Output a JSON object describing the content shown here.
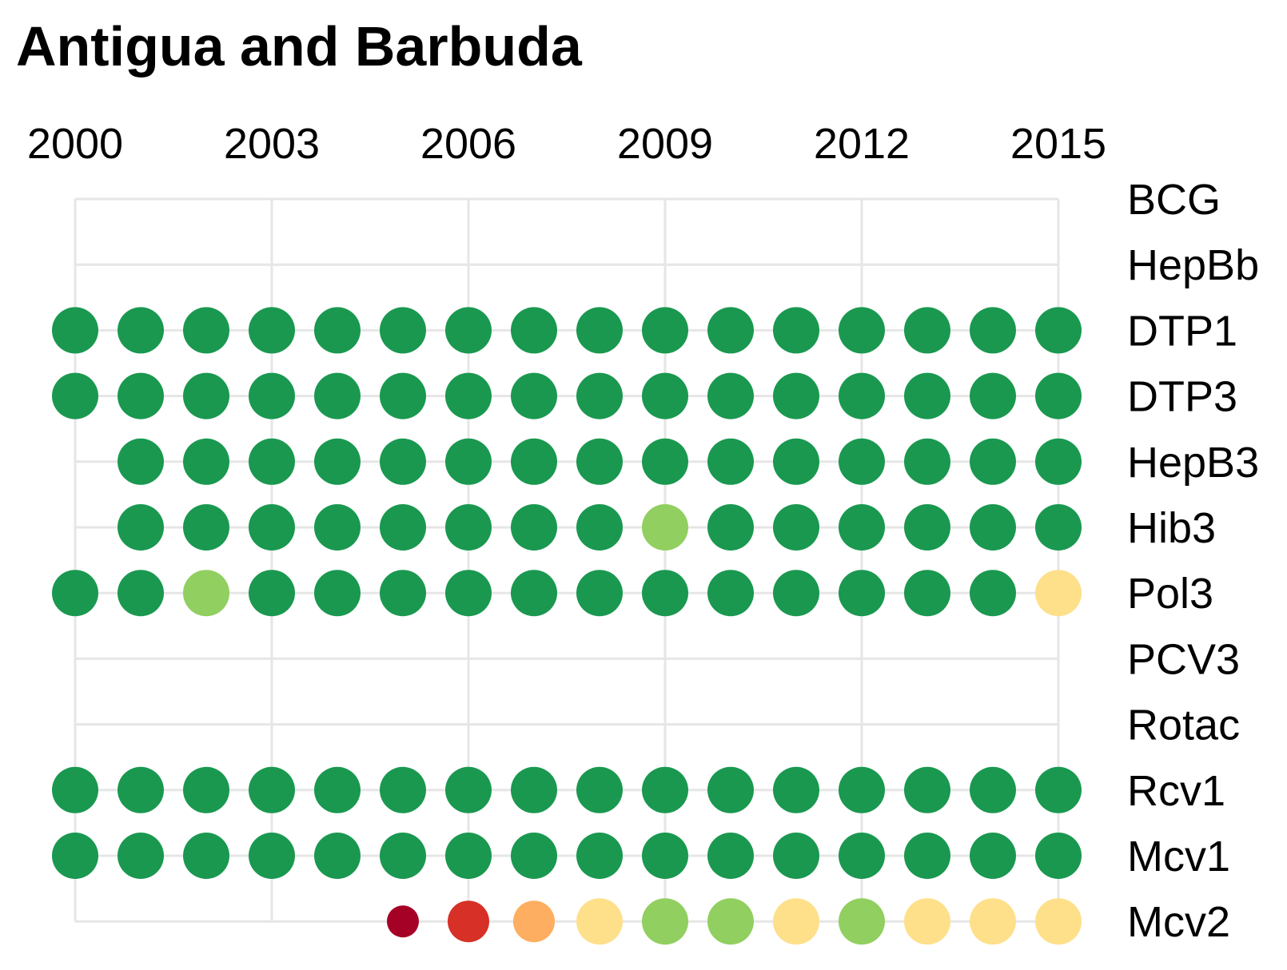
{
  "chart_data": {
    "type": "scatter",
    "title": "Antigua and Barbuda",
    "x_ticks": [
      "2000",
      "2003",
      "2006",
      "2009",
      "2012",
      "2015"
    ],
    "years": [
      2000,
      2001,
      2002,
      2003,
      2004,
      2005,
      2006,
      2007,
      2008,
      2009,
      2010,
      2011,
      2012,
      2013,
      2014,
      2015
    ],
    "xlim": [
      2000,
      2015
    ],
    "colors": {
      "dark_green": "#1a9850",
      "light_green": "#91cf60",
      "pale_yellow": "#fee08b",
      "orange": "#fdae61",
      "red": "#d73027",
      "dark_red": "#a50026"
    },
    "series": [
      {
        "name": "BCG",
        "points": []
      },
      {
        "name": "HepBb",
        "points": []
      },
      {
        "name": "DTP1",
        "points": [
          {
            "year": 2000,
            "level": "dark_green"
          },
          {
            "year": 2001,
            "level": "dark_green"
          },
          {
            "year": 2002,
            "level": "dark_green"
          },
          {
            "year": 2003,
            "level": "dark_green"
          },
          {
            "year": 2004,
            "level": "dark_green"
          },
          {
            "year": 2005,
            "level": "dark_green"
          },
          {
            "year": 2006,
            "level": "dark_green"
          },
          {
            "year": 2007,
            "level": "dark_green"
          },
          {
            "year": 2008,
            "level": "dark_green"
          },
          {
            "year": 2009,
            "level": "dark_green"
          },
          {
            "year": 2010,
            "level": "dark_green"
          },
          {
            "year": 2011,
            "level": "dark_green"
          },
          {
            "year": 2012,
            "level": "dark_green"
          },
          {
            "year": 2013,
            "level": "dark_green"
          },
          {
            "year": 2014,
            "level": "dark_green"
          },
          {
            "year": 2015,
            "level": "dark_green"
          }
        ]
      },
      {
        "name": "DTP3",
        "points": [
          {
            "year": 2000,
            "level": "dark_green"
          },
          {
            "year": 2001,
            "level": "dark_green"
          },
          {
            "year": 2002,
            "level": "dark_green"
          },
          {
            "year": 2003,
            "level": "dark_green"
          },
          {
            "year": 2004,
            "level": "dark_green"
          },
          {
            "year": 2005,
            "level": "dark_green"
          },
          {
            "year": 2006,
            "level": "dark_green"
          },
          {
            "year": 2007,
            "level": "dark_green"
          },
          {
            "year": 2008,
            "level": "dark_green"
          },
          {
            "year": 2009,
            "level": "dark_green"
          },
          {
            "year": 2010,
            "level": "dark_green"
          },
          {
            "year": 2011,
            "level": "dark_green"
          },
          {
            "year": 2012,
            "level": "dark_green"
          },
          {
            "year": 2013,
            "level": "dark_green"
          },
          {
            "year": 2014,
            "level": "dark_green"
          },
          {
            "year": 2015,
            "level": "dark_green"
          }
        ]
      },
      {
        "name": "HepB3",
        "points": [
          {
            "year": 2001,
            "level": "dark_green"
          },
          {
            "year": 2002,
            "level": "dark_green"
          },
          {
            "year": 2003,
            "level": "dark_green"
          },
          {
            "year": 2004,
            "level": "dark_green"
          },
          {
            "year": 2005,
            "level": "dark_green"
          },
          {
            "year": 2006,
            "level": "dark_green"
          },
          {
            "year": 2007,
            "level": "dark_green"
          },
          {
            "year": 2008,
            "level": "dark_green"
          },
          {
            "year": 2009,
            "level": "dark_green"
          },
          {
            "year": 2010,
            "level": "dark_green"
          },
          {
            "year": 2011,
            "level": "dark_green"
          },
          {
            "year": 2012,
            "level": "dark_green"
          },
          {
            "year": 2013,
            "level": "dark_green"
          },
          {
            "year": 2014,
            "level": "dark_green"
          },
          {
            "year": 2015,
            "level": "dark_green"
          }
        ]
      },
      {
        "name": "Hib3",
        "points": [
          {
            "year": 2001,
            "level": "dark_green"
          },
          {
            "year": 2002,
            "level": "dark_green"
          },
          {
            "year": 2003,
            "level": "dark_green"
          },
          {
            "year": 2004,
            "level": "dark_green"
          },
          {
            "year": 2005,
            "level": "dark_green"
          },
          {
            "year": 2006,
            "level": "dark_green"
          },
          {
            "year": 2007,
            "level": "dark_green"
          },
          {
            "year": 2008,
            "level": "dark_green"
          },
          {
            "year": 2009,
            "level": "light_green"
          },
          {
            "year": 2010,
            "level": "dark_green"
          },
          {
            "year": 2011,
            "level": "dark_green"
          },
          {
            "year": 2012,
            "level": "dark_green"
          },
          {
            "year": 2013,
            "level": "dark_green"
          },
          {
            "year": 2014,
            "level": "dark_green"
          },
          {
            "year": 2015,
            "level": "dark_green"
          }
        ]
      },
      {
        "name": "Pol3",
        "points": [
          {
            "year": 2000,
            "level": "dark_green"
          },
          {
            "year": 2001,
            "level": "dark_green"
          },
          {
            "year": 2002,
            "level": "light_green"
          },
          {
            "year": 2003,
            "level": "dark_green"
          },
          {
            "year": 2004,
            "level": "dark_green"
          },
          {
            "year": 2005,
            "level": "dark_green"
          },
          {
            "year": 2006,
            "level": "dark_green"
          },
          {
            "year": 2007,
            "level": "dark_green"
          },
          {
            "year": 2008,
            "level": "dark_green"
          },
          {
            "year": 2009,
            "level": "dark_green"
          },
          {
            "year": 2010,
            "level": "dark_green"
          },
          {
            "year": 2011,
            "level": "dark_green"
          },
          {
            "year": 2012,
            "level": "dark_green"
          },
          {
            "year": 2013,
            "level": "dark_green"
          },
          {
            "year": 2014,
            "level": "dark_green"
          },
          {
            "year": 2015,
            "level": "pale_yellow"
          }
        ]
      },
      {
        "name": "PCV3",
        "points": []
      },
      {
        "name": "Rotac",
        "points": []
      },
      {
        "name": "Rcv1",
        "points": [
          {
            "year": 2000,
            "level": "dark_green"
          },
          {
            "year": 2001,
            "level": "dark_green"
          },
          {
            "year": 2002,
            "level": "dark_green"
          },
          {
            "year": 2003,
            "level": "dark_green"
          },
          {
            "year": 2004,
            "level": "dark_green"
          },
          {
            "year": 2005,
            "level": "dark_green"
          },
          {
            "year": 2006,
            "level": "dark_green"
          },
          {
            "year": 2007,
            "level": "dark_green"
          },
          {
            "year": 2008,
            "level": "dark_green"
          },
          {
            "year": 2009,
            "level": "dark_green"
          },
          {
            "year": 2010,
            "level": "dark_green"
          },
          {
            "year": 2011,
            "level": "dark_green"
          },
          {
            "year": 2012,
            "level": "dark_green"
          },
          {
            "year": 2013,
            "level": "dark_green"
          },
          {
            "year": 2014,
            "level": "dark_green"
          },
          {
            "year": 2015,
            "level": "dark_green"
          }
        ]
      },
      {
        "name": "Mcv1",
        "points": [
          {
            "year": 2000,
            "level": "dark_green"
          },
          {
            "year": 2001,
            "level": "dark_green"
          },
          {
            "year": 2002,
            "level": "dark_green"
          },
          {
            "year": 2003,
            "level": "dark_green"
          },
          {
            "year": 2004,
            "level": "dark_green"
          },
          {
            "year": 2005,
            "level": "dark_green"
          },
          {
            "year": 2006,
            "level": "dark_green"
          },
          {
            "year": 2007,
            "level": "dark_green"
          },
          {
            "year": 2008,
            "level": "dark_green"
          },
          {
            "year": 2009,
            "level": "dark_green"
          },
          {
            "year": 2010,
            "level": "dark_green"
          },
          {
            "year": 2011,
            "level": "dark_green"
          },
          {
            "year": 2012,
            "level": "dark_green"
          },
          {
            "year": 2013,
            "level": "dark_green"
          },
          {
            "year": 2014,
            "level": "dark_green"
          },
          {
            "year": 2015,
            "level": "dark_green"
          }
        ]
      },
      {
        "name": "Mcv2",
        "points": [
          {
            "year": 2005,
            "level": "dark_red"
          },
          {
            "year": 2006,
            "level": "red"
          },
          {
            "year": 2007,
            "level": "orange"
          },
          {
            "year": 2008,
            "level": "pale_yellow"
          },
          {
            "year": 2009,
            "level": "light_green"
          },
          {
            "year": 2010,
            "level": "light_green"
          },
          {
            "year": 2011,
            "level": "pale_yellow"
          },
          {
            "year": 2012,
            "level": "light_green"
          },
          {
            "year": 2013,
            "level": "pale_yellow"
          },
          {
            "year": 2014,
            "level": "pale_yellow"
          },
          {
            "year": 2015,
            "level": "pale_yellow"
          }
        ]
      }
    ]
  }
}
